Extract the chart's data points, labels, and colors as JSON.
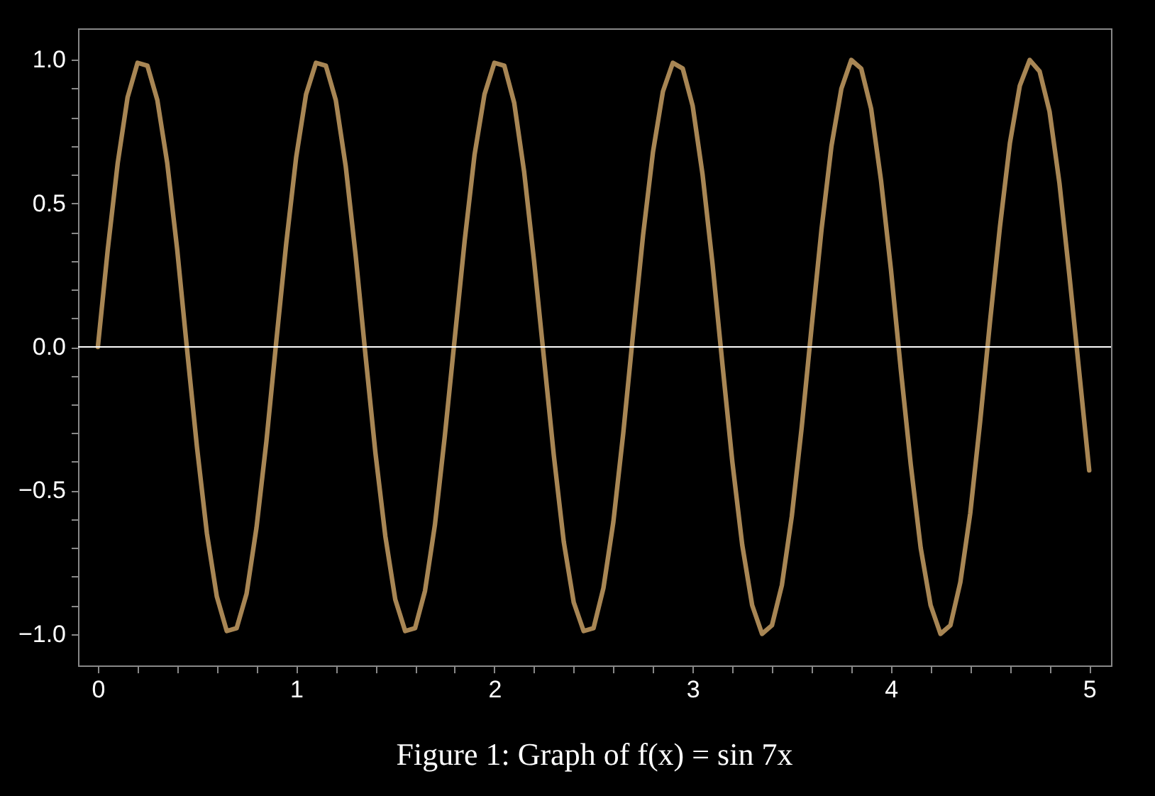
{
  "chart_data": {
    "type": "line",
    "annotations": [
      "Figure 1: Graph of f(x) = sin 7x"
    ],
    "xlim": [
      -0.1,
      5.11
    ],
    "ylim": [
      -1.11,
      1.11
    ],
    "xticks": [
      0,
      {
        "value": 0.2,
        "label": null
      },
      {
        "value": 0.4,
        "label": null
      },
      {
        "value": 0.6,
        "label": null
      },
      {
        "value": 0.8,
        "label": null
      },
      1,
      {
        "value": 1.2,
        "label": null
      },
      {
        "value": 1.4,
        "label": null
      },
      {
        "value": 1.6,
        "label": null
      },
      {
        "value": 1.8,
        "label": null
      },
      2,
      {
        "value": 2.2,
        "label": null
      },
      {
        "value": 2.4,
        "label": null
      },
      {
        "value": 2.6,
        "label": null
      },
      {
        "value": 2.8,
        "label": null
      },
      3,
      {
        "value": 3.2,
        "label": null
      },
      {
        "value": 3.4,
        "label": null
      },
      {
        "value": 3.6,
        "label": null
      },
      {
        "value": 3.8,
        "label": null
      },
      4,
      {
        "value": 4.2,
        "label": null
      },
      {
        "value": 4.4,
        "label": null
      },
      {
        "value": 4.6,
        "label": null
      },
      {
        "value": 4.8,
        "label": null
      },
      5
    ],
    "yticks": [
      {
        "value": -1,
        "label": "−1.0"
      },
      {
        "value": -0.9,
        "label": null
      },
      {
        "value": -0.8,
        "label": null
      },
      {
        "value": -0.7,
        "label": null
      },
      {
        "value": -0.6,
        "label": null
      },
      {
        "value": -0.5,
        "label": "−0.5"
      },
      {
        "value": -0.4,
        "label": null
      },
      {
        "value": -0.3,
        "label": null
      },
      {
        "value": -0.2,
        "label": null
      },
      {
        "value": -0.1,
        "label": null
      },
      {
        "value": 0,
        "label": "0.0"
      },
      {
        "value": 0.1,
        "label": null
      },
      {
        "value": 0.2,
        "label": null
      },
      {
        "value": 0.3,
        "label": null
      },
      {
        "value": 0.4,
        "label": null
      },
      {
        "value": 0.5,
        "label": "0.5"
      },
      {
        "value": 0.6,
        "label": null
      },
      {
        "value": 0.7,
        "label": null
      },
      {
        "value": 0.8,
        "label": null
      },
      {
        "value": 0.9,
        "label": null
      },
      {
        "value": 1,
        "label": "1.0"
      }
    ],
    "ref_lines": [
      {
        "axis": "y",
        "value": 0,
        "label": null,
        "color": "#ffffff"
      }
    ],
    "line_style": "solid",
    "marker": "none",
    "grid": false,
    "x": [
      0,
      0.05,
      0.1,
      0.15,
      0.2,
      0.25,
      0.3,
      0.35,
      0.4,
      0.45,
      0.5,
      0.55,
      0.6,
      0.65,
      0.7,
      0.75,
      0.8,
      0.85,
      0.9,
      0.95,
      1,
      1.05,
      1.1,
      1.15,
      1.2,
      1.25,
      1.3,
      1.35,
      1.4,
      1.45,
      1.5,
      1.55,
      1.6,
      1.65,
      1.7,
      1.75,
      1.8,
      1.85,
      1.9,
      1.95,
      2,
      2.05,
      2.1,
      2.15,
      2.2,
      2.25,
      2.3,
      2.35,
      2.4,
      2.45,
      2.5,
      2.55,
      2.6,
      2.65,
      2.7,
      2.75,
      2.8,
      2.85,
      2.9,
      2.95,
      3,
      3.05,
      3.1,
      3.15,
      3.2,
      3.25,
      3.3,
      3.35,
      3.4,
      3.45,
      3.5,
      3.55,
      3.6,
      3.65,
      3.7,
      3.75,
      3.8,
      3.85,
      3.9,
      3.95,
      4,
      4.05,
      4.1,
      4.15,
      4.2,
      4.25,
      4.3,
      4.35,
      4.4,
      4.45,
      4.5,
      4.55,
      4.6,
      4.65,
      4.7,
      4.75,
      4.8,
      4.85,
      4.9,
      4.95,
      5
    ],
    "series": [
      {
        "color": "#a88654",
        "values": [
          0,
          0.34,
          0.64,
          0.87,
          0.99,
          0.98,
          0.86,
          0.64,
          0.34,
          -0.01,
          -0.35,
          -0.65,
          -0.87,
          -0.99,
          -0.98,
          -0.86,
          -0.63,
          -0.33,
          0.02,
          0.36,
          0.66,
          0.88,
          0.99,
          0.98,
          0.86,
          0.63,
          0.32,
          -0.03,
          -0.37,
          -0.66,
          -0.88,
          -0.99,
          -0.98,
          -0.85,
          -0.62,
          -0.31,
          0.03,
          0.37,
          0.67,
          0.88,
          0.99,
          0.98,
          0.85,
          0.61,
          0.3,
          -0.04,
          -0.38,
          -0.68,
          -0.89,
          -0.99,
          -0.98,
          -0.84,
          -0.61,
          -0.3,
          0.05,
          0.39,
          0.68,
          0.89,
          0.99,
          0.97,
          0.84,
          0.6,
          0.29,
          -0.06,
          -0.4,
          -0.69,
          -0.9,
          -1,
          -0.97,
          -0.83,
          -0.59,
          -0.28,
          0.07,
          0.41,
          0.7,
          0.9,
          1,
          0.97,
          0.83,
          0.58,
          0.27,
          -0.08,
          -0.41,
          -0.7,
          -0.9,
          -1,
          -0.97,
          -0.82,
          -0.58,
          -0.26,
          0.09,
          0.42,
          0.71,
          0.91,
          1,
          0.96,
          0.82,
          0.57,
          0.25,
          -0.09,
          -0.43
        ]
      }
    ]
  }
}
